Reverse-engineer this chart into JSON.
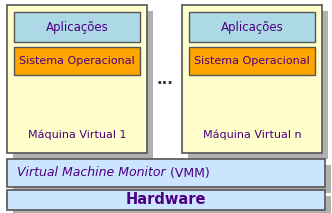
{
  "bg_color": "#ffffff",
  "shadow_color": "#b0b0b0",
  "vm_box_color": "#ffffcc",
  "vm_box_edge": "#555555",
  "app_box_color": "#add8e6",
  "app_box_edge": "#555555",
  "so_box_color": "#ffa500",
  "so_box_edge": "#555555",
  "vmm_box_color": "#cce5ff",
  "vmm_box_edge": "#555555",
  "hw_box_color": "#cce5ff",
  "hw_box_edge": "#555555",
  "text_color": "#4b0082",
  "vm1_label": "Máquina Virtual 1",
  "vmn_label": "Máquina Virtual n",
  "app_label": "Aplicações",
  "so_label": "Sistema Operacional",
  "vmm_italic": "Virtual Machine Monitor",
  "vmm_normal": " (VMM)",
  "hw_label": "Hardware",
  "dots_label": "...",
  "fig_width": 3.32,
  "fig_height": 2.13,
  "dpi": 100
}
